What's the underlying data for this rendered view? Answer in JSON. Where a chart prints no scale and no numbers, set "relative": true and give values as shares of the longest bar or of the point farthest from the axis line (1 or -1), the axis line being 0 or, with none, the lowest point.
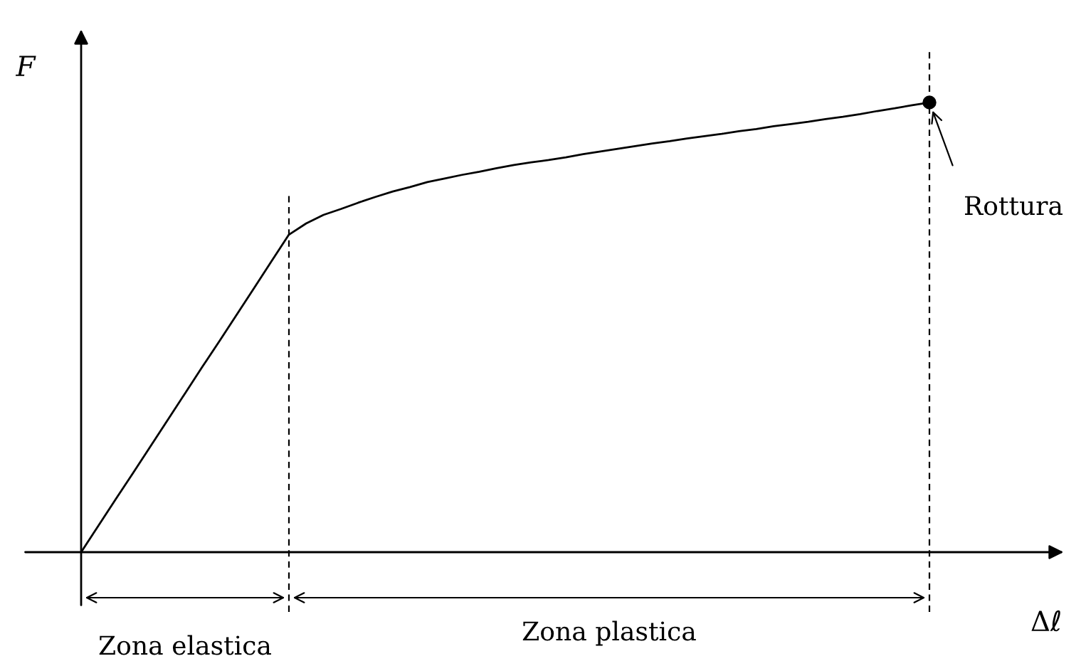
{
  "chart_data": {
    "type": "line",
    "relative": true,
    "ylabel": "F",
    "xlabel": "Δℓ",
    "categories": [
      null,
      null,
      null,
      null,
      null,
      null,
      null,
      null,
      null,
      null,
      null,
      null,
      null,
      null,
      null,
      null,
      null,
      null,
      null,
      null,
      null,
      null,
      null,
      null,
      null,
      null,
      null,
      null,
      null,
      null,
      null,
      null,
      null,
      null,
      null,
      null,
      null,
      null,
      null,
      null,
      null,
      null,
      null,
      null,
      null,
      null,
      null,
      null,
      null,
      null
    ],
    "series": [
      {
        "color": "#000000",
        "values": [
          0,
          0.059,
          0.118,
          0.176,
          0.235,
          0.294,
          0.353,
          0.412,
          0.47,
          0.529,
          0.588,
          0.647,
          0.706,
          0.731,
          0.75,
          0.763,
          0.777,
          0.79,
          0.802,
          0.812,
          0.823,
          0.831,
          0.839,
          0.846,
          0.854,
          0.861,
          0.867,
          0.872,
          0.878,
          0.885,
          0.891,
          0.897,
          0.903,
          0.909,
          0.914,
          0.92,
          0.925,
          0.93,
          0.936,
          0.941,
          0.947,
          0.952,
          0.957,
          0.963,
          0.968,
          0.974,
          0.981,
          0.987,
          0.994,
          1
        ]
      }
    ],
    "annotations": [
      "Rottura",
      "Zona elastica",
      "Zona plastica"
    ],
    "legend": false
  }
}
